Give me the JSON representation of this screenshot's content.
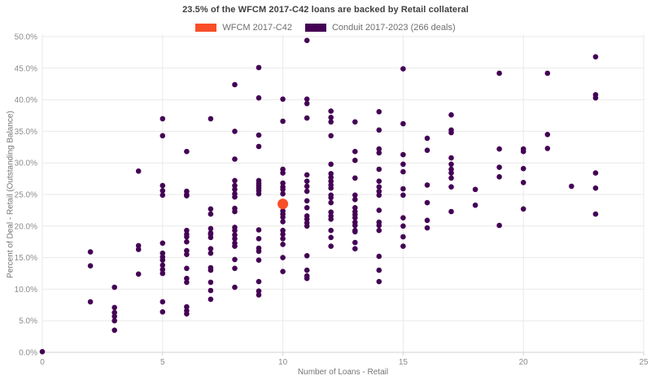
{
  "title": "23.5% of the WFCM 2017-C42 loans are backed by Retail collateral",
  "legend": {
    "items": [
      {
        "label": "WFCM 2017-C42",
        "color": "#F94E28"
      },
      {
        "label": "Conduit 2017-2023 (266 deals)",
        "color": "#440154"
      }
    ]
  },
  "colors": {
    "grid": "#e9e9e9",
    "axis_line": "#d2d2d2",
    "tick_text": "#8c8c8c",
    "title_text": "#3f3f3f"
  },
  "chart_data": {
    "type": "scatter",
    "title": "23.5% of the WFCM 2017-C42 loans are backed by Retail collateral",
    "xlabel": "Number of Loans - Retail",
    "ylabel": "Percent of Deal - Retail (Outstanding Balance)",
    "xlim": [
      0,
      25
    ],
    "ylim": [
      0,
      50
    ],
    "x_ticks": [
      0,
      5,
      10,
      15,
      20,
      25
    ],
    "x_tick_labels": [
      "0",
      "5",
      "10",
      "15",
      "20",
      "25"
    ],
    "y_ticks": [
      0,
      5,
      10,
      15,
      20,
      25,
      30,
      35,
      40,
      45,
      50
    ],
    "y_tick_labels": [
      "0.0%",
      "5.0%",
      "10.0%",
      "15.0%",
      "20.0%",
      "25.0%",
      "30.0%",
      "35.0%",
      "40.0%",
      "45.0%",
      "50.0%"
    ],
    "grid": true,
    "legend_position": "top",
    "series": [
      {
        "name": "Conduit 2017-2023 (266 deals)",
        "color": "#440154",
        "marker_radius": 3.3,
        "points": [
          [
            0,
            0.1
          ],
          [
            2,
            15.9
          ],
          [
            2,
            13.7
          ],
          [
            2,
            8.0
          ],
          [
            3,
            10.3
          ],
          [
            3,
            7.1
          ],
          [
            3,
            6.3
          ],
          [
            3,
            5.7
          ],
          [
            3,
            5.0
          ],
          [
            3,
            3.5
          ],
          [
            4,
            28.7
          ],
          [
            4,
            16.9
          ],
          [
            4,
            16.3
          ],
          [
            4,
            12.4
          ],
          [
            5,
            37.0
          ],
          [
            5,
            34.3
          ],
          [
            5,
            26.4
          ],
          [
            5,
            25.6
          ],
          [
            5,
            24.9
          ],
          [
            5,
            17.3
          ],
          [
            5,
            15.7
          ],
          [
            5,
            15.1
          ],
          [
            5,
            14.6
          ],
          [
            5,
            13.8
          ],
          [
            5,
            13.1
          ],
          [
            5,
            12.5
          ],
          [
            5,
            8.0
          ],
          [
            5,
            6.4
          ],
          [
            6,
            31.8
          ],
          [
            6,
            25.5
          ],
          [
            6,
            25.0
          ],
          [
            6,
            24.8
          ],
          [
            6,
            19.3
          ],
          [
            6,
            18.7
          ],
          [
            6,
            18.3
          ],
          [
            6,
            17.5
          ],
          [
            6,
            16.1
          ],
          [
            6,
            15.5
          ],
          [
            6,
            13.3
          ],
          [
            6,
            11.7
          ],
          [
            6,
            11.1
          ],
          [
            6,
            7.2
          ],
          [
            6,
            6.6
          ],
          [
            6,
            6.1
          ],
          [
            7,
            37.0
          ],
          [
            7,
            22.7
          ],
          [
            7,
            21.9
          ],
          [
            7,
            19.6
          ],
          [
            7,
            18.9
          ],
          [
            7,
            18.7
          ],
          [
            7,
            18.2
          ],
          [
            7,
            16.4
          ],
          [
            7,
            15.7
          ],
          [
            7,
            13.4
          ],
          [
            7,
            13.0
          ],
          [
            7,
            11.1
          ],
          [
            7,
            9.8
          ],
          [
            7,
            8.4
          ],
          [
            8,
            42.4
          ],
          [
            8,
            35.0
          ],
          [
            8,
            30.6
          ],
          [
            8,
            27.2
          ],
          [
            8,
            26.4
          ],
          [
            8,
            25.8
          ],
          [
            8,
            25.1
          ],
          [
            8,
            24.6
          ],
          [
            8,
            22.8
          ],
          [
            8,
            22.3
          ],
          [
            8,
            19.8
          ],
          [
            8,
            19.3
          ],
          [
            8,
            18.6
          ],
          [
            8,
            18.0
          ],
          [
            8,
            17.3
          ],
          [
            8,
            16.8
          ],
          [
            8,
            14.7
          ],
          [
            8,
            13.3
          ],
          [
            8,
            10.3
          ],
          [
            9,
            45.1
          ],
          [
            9,
            40.3
          ],
          [
            9,
            34.4
          ],
          [
            9,
            32.6
          ],
          [
            9,
            27.2
          ],
          [
            9,
            26.8
          ],
          [
            9,
            26.4
          ],
          [
            9,
            26.0
          ],
          [
            9,
            25.6
          ],
          [
            9,
            25.1
          ],
          [
            9,
            19.4
          ],
          [
            9,
            18.0
          ],
          [
            9,
            16.5
          ],
          [
            9,
            16.0
          ],
          [
            9,
            14.6
          ],
          [
            9,
            11.2
          ],
          [
            9,
            9.7
          ],
          [
            9,
            9.1
          ],
          [
            10,
            40.1
          ],
          [
            10,
            36.6
          ],
          [
            10,
            29.0
          ],
          [
            10,
            28.4
          ],
          [
            10,
            26.8
          ],
          [
            10,
            26.2
          ],
          [
            10,
            25.8
          ],
          [
            10,
            25.1
          ],
          [
            10,
            22.4
          ],
          [
            10,
            21.9
          ],
          [
            10,
            21.4
          ],
          [
            10,
            20.7
          ],
          [
            10,
            19.3
          ],
          [
            10,
            18.7
          ],
          [
            10,
            18.0
          ],
          [
            10,
            17.1
          ],
          [
            10,
            15.0
          ],
          [
            10,
            12.8
          ],
          [
            11,
            49.4
          ],
          [
            11,
            40.1
          ],
          [
            11,
            39.4
          ],
          [
            11,
            37.1
          ],
          [
            11,
            28.1
          ],
          [
            11,
            27.1
          ],
          [
            11,
            26.3
          ],
          [
            11,
            25.5
          ],
          [
            11,
            24.0
          ],
          [
            11,
            22.9
          ],
          [
            11,
            21.6
          ],
          [
            11,
            21.1
          ],
          [
            11,
            20.5
          ],
          [
            11,
            20.0
          ],
          [
            11,
            15.3
          ],
          [
            11,
            13.0
          ],
          [
            11,
            12.1
          ],
          [
            11,
            11.7
          ],
          [
            12,
            38.2
          ],
          [
            12,
            37.2
          ],
          [
            12,
            36.5
          ],
          [
            12,
            34.3
          ],
          [
            12,
            29.8
          ],
          [
            12,
            28.3
          ],
          [
            12,
            27.7
          ],
          [
            12,
            27.1
          ],
          [
            12,
            26.5
          ],
          [
            12,
            26.0
          ],
          [
            12,
            24.9
          ],
          [
            12,
            24.5
          ],
          [
            12,
            23.7
          ],
          [
            12,
            22.2
          ],
          [
            12,
            21.6
          ],
          [
            12,
            21.1
          ],
          [
            12,
            19.3
          ],
          [
            12,
            18.2
          ],
          [
            12,
            16.8
          ],
          [
            13,
            36.5
          ],
          [
            13,
            31.8
          ],
          [
            13,
            30.4
          ],
          [
            13,
            27.6
          ],
          [
            13,
            24.9
          ],
          [
            13,
            24.2
          ],
          [
            13,
            22.9
          ],
          [
            13,
            22.3
          ],
          [
            13,
            21.8
          ],
          [
            13,
            21.3
          ],
          [
            13,
            20.6
          ],
          [
            13,
            20.1
          ],
          [
            13,
            19.3
          ],
          [
            13,
            19.1
          ],
          [
            13,
            17.4
          ],
          [
            13,
            16.4
          ],
          [
            14,
            38.1
          ],
          [
            14,
            35.2
          ],
          [
            14,
            32.2
          ],
          [
            14,
            31.6
          ],
          [
            14,
            29.0
          ],
          [
            14,
            27.1
          ],
          [
            14,
            26.2
          ],
          [
            14,
            25.5
          ],
          [
            14,
            24.9
          ],
          [
            14,
            22.5
          ],
          [
            14,
            20.6
          ],
          [
            14,
            20.1
          ],
          [
            14,
            19.3
          ],
          [
            14,
            15.2
          ],
          [
            14,
            13.0
          ],
          [
            14,
            11.2
          ],
          [
            15,
            44.9
          ],
          [
            15,
            36.2
          ],
          [
            15,
            31.3
          ],
          [
            15,
            29.8
          ],
          [
            15,
            28.6
          ],
          [
            15,
            25.9
          ],
          [
            15,
            24.9
          ],
          [
            15,
            21.3
          ],
          [
            15,
            20.0
          ],
          [
            15,
            18.3
          ],
          [
            15,
            16.8
          ],
          [
            16,
            33.9
          ],
          [
            16,
            32.0
          ],
          [
            16,
            26.5
          ],
          [
            16,
            23.7
          ],
          [
            16,
            20.9
          ],
          [
            16,
            19.7
          ],
          [
            17,
            37.6
          ],
          [
            17,
            35.2
          ],
          [
            17,
            34.8
          ],
          [
            17,
            30.8
          ],
          [
            17,
            29.8
          ],
          [
            17,
            29.0
          ],
          [
            17,
            28.4
          ],
          [
            17,
            27.6
          ],
          [
            17,
            26.2
          ],
          [
            17,
            22.3
          ],
          [
            18,
            25.8
          ],
          [
            18,
            23.3
          ],
          [
            19,
            44.2
          ],
          [
            19,
            32.2
          ],
          [
            19,
            29.3
          ],
          [
            19,
            27.8
          ],
          [
            19,
            20.1
          ],
          [
            20,
            32.2
          ],
          [
            20,
            31.8
          ],
          [
            20,
            29.1
          ],
          [
            20,
            26.9
          ],
          [
            20,
            22.7
          ],
          [
            21,
            44.2
          ],
          [
            21,
            34.5
          ],
          [
            21,
            32.3
          ],
          [
            22,
            26.3
          ],
          [
            23,
            46.8
          ],
          [
            23,
            40.8
          ],
          [
            23,
            40.3
          ],
          [
            23,
            28.4
          ],
          [
            23,
            26.0
          ],
          [
            23,
            21.9
          ]
        ]
      },
      {
        "name": "WFCM 2017-C42",
        "color": "#F94E28",
        "marker_radius": 6.5,
        "points": [
          [
            10,
            23.5
          ]
        ]
      }
    ]
  }
}
